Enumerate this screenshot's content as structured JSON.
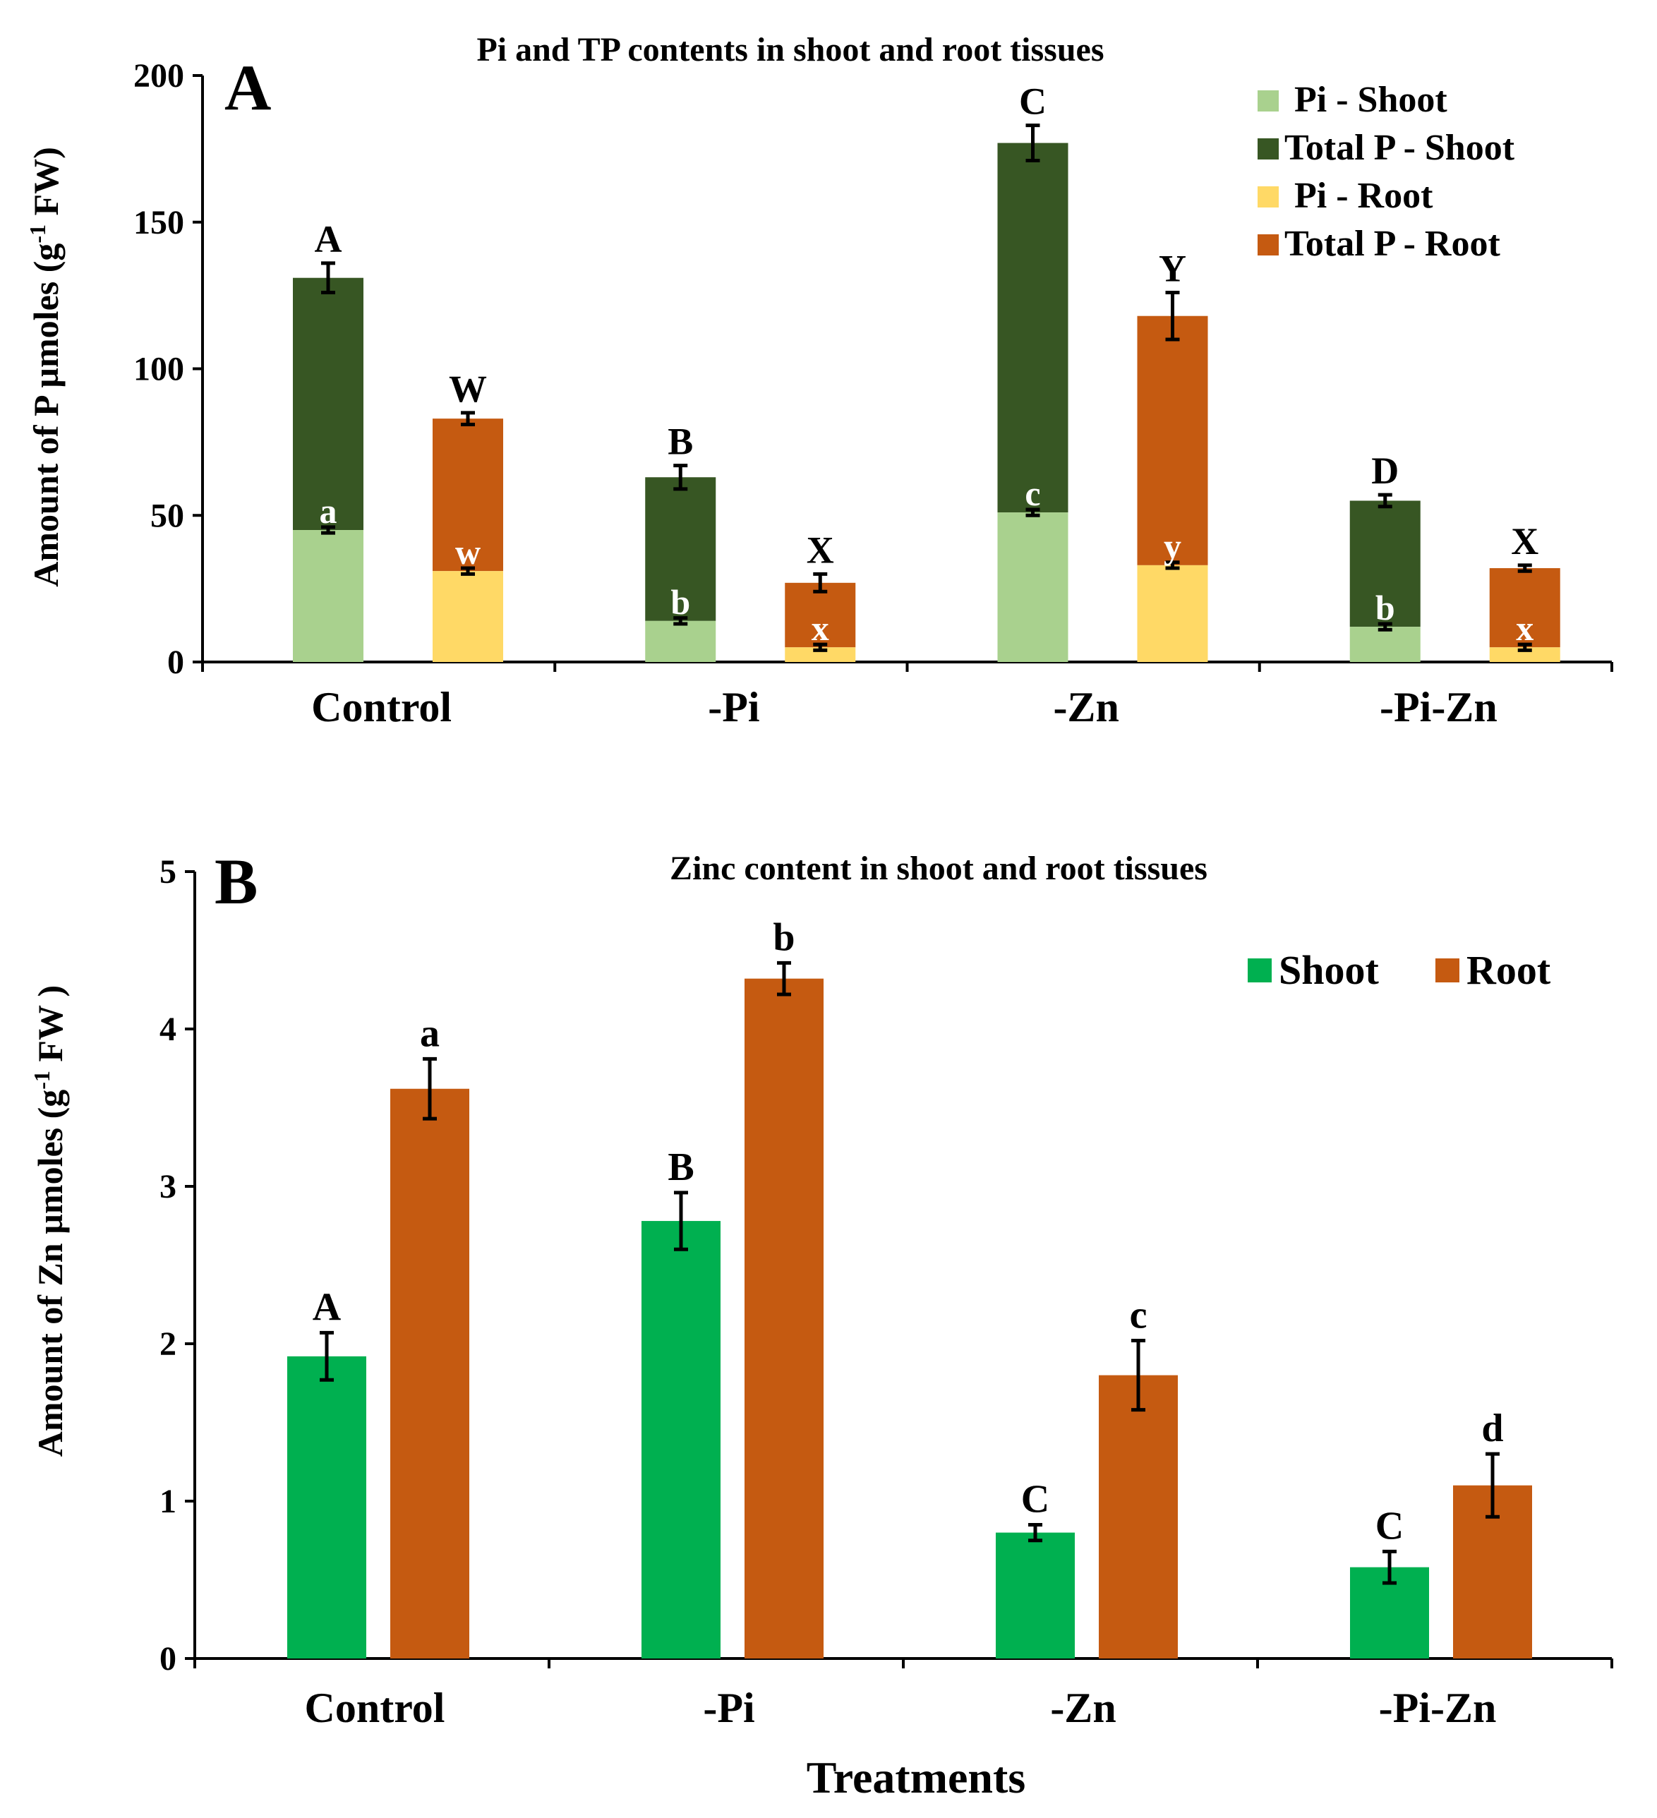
{
  "chart_data": [
    {
      "panel": "A",
      "type": "bar",
      "stacked": true,
      "title": "Pi and TP contents in shoot and root tissues",
      "ylabel": "Amount of P µmoles (g⁻¹ FW)",
      "ylabel_parts": {
        "main": "Amount of P µmoles (g",
        "sup": "-1",
        "tail": " FW)"
      },
      "xlabel": "",
      "ylim": [
        0,
        200
      ],
      "yticks": [
        0,
        50,
        100,
        150,
        200
      ],
      "categories": [
        "Control",
        "-Pi",
        "-Zn",
        "-Pi-Zn"
      ],
      "legend_position": "top-right",
      "series": [
        {
          "name": "Pi - Shoot",
          "color": "#a9d18e",
          "group": "shoot",
          "values": [
            45,
            14,
            51,
            12
          ],
          "errors": [
            1,
            1,
            1,
            1
          ],
          "labels": [
            "a",
            "b",
            "c",
            "b"
          ]
        },
        {
          "name": "Total P - Shoot",
          "color": "#375623",
          "group": "shoot",
          "values": [
            131,
            63,
            177,
            55
          ],
          "errors": [
            5,
            4,
            6,
            2
          ],
          "labels": [
            "A",
            "B",
            "C",
            "D"
          ]
        },
        {
          "name": "Pi - Root",
          "color": "#ffd966",
          "group": "root",
          "values": [
            31,
            5,
            33,
            5
          ],
          "errors": [
            1,
            1,
            1,
            1
          ],
          "labels": [
            "w",
            "x",
            "y",
            "x"
          ]
        },
        {
          "name": "Total P - Root",
          "color": "#c55a11",
          "group": "root",
          "values": [
            83,
            27,
            118,
            32
          ],
          "errors": [
            2,
            3,
            8,
            1
          ],
          "labels": [
            "W",
            "X",
            "Y",
            "X"
          ]
        }
      ]
    },
    {
      "panel": "B",
      "type": "bar",
      "stacked": false,
      "title": "Zinc content in shoot and root tissues",
      "ylabel": "Amount of Zn µmoles (g⁻¹ FW )",
      "ylabel_parts": {
        "main": "Amount of Zn µmoles (g",
        "sup": "-1",
        "tail": " FW )"
      },
      "xlabel": "Treatments",
      "ylim": [
        0,
        5
      ],
      "yticks": [
        0,
        1,
        2,
        3,
        4,
        5
      ],
      "categories": [
        "Control",
        "-Pi",
        "-Zn",
        "-Pi-Zn"
      ],
      "legend_position": "top-right",
      "series": [
        {
          "name": "Shoot",
          "color": "#00b050",
          "values": [
            1.92,
            2.78,
            0.8,
            0.58
          ],
          "errors": [
            0.15,
            0.18,
            0.05,
            0.1
          ],
          "labels": [
            "A",
            "B",
            "C",
            "C"
          ]
        },
        {
          "name": "Root",
          "color": "#c55a11",
          "values": [
            3.62,
            4.32,
            1.8,
            1.1
          ],
          "errors": [
            0.19,
            0.1,
            0.22,
            0.2
          ],
          "labels": [
            "a",
            "b",
            "c",
            "d"
          ]
        }
      ]
    }
  ]
}
